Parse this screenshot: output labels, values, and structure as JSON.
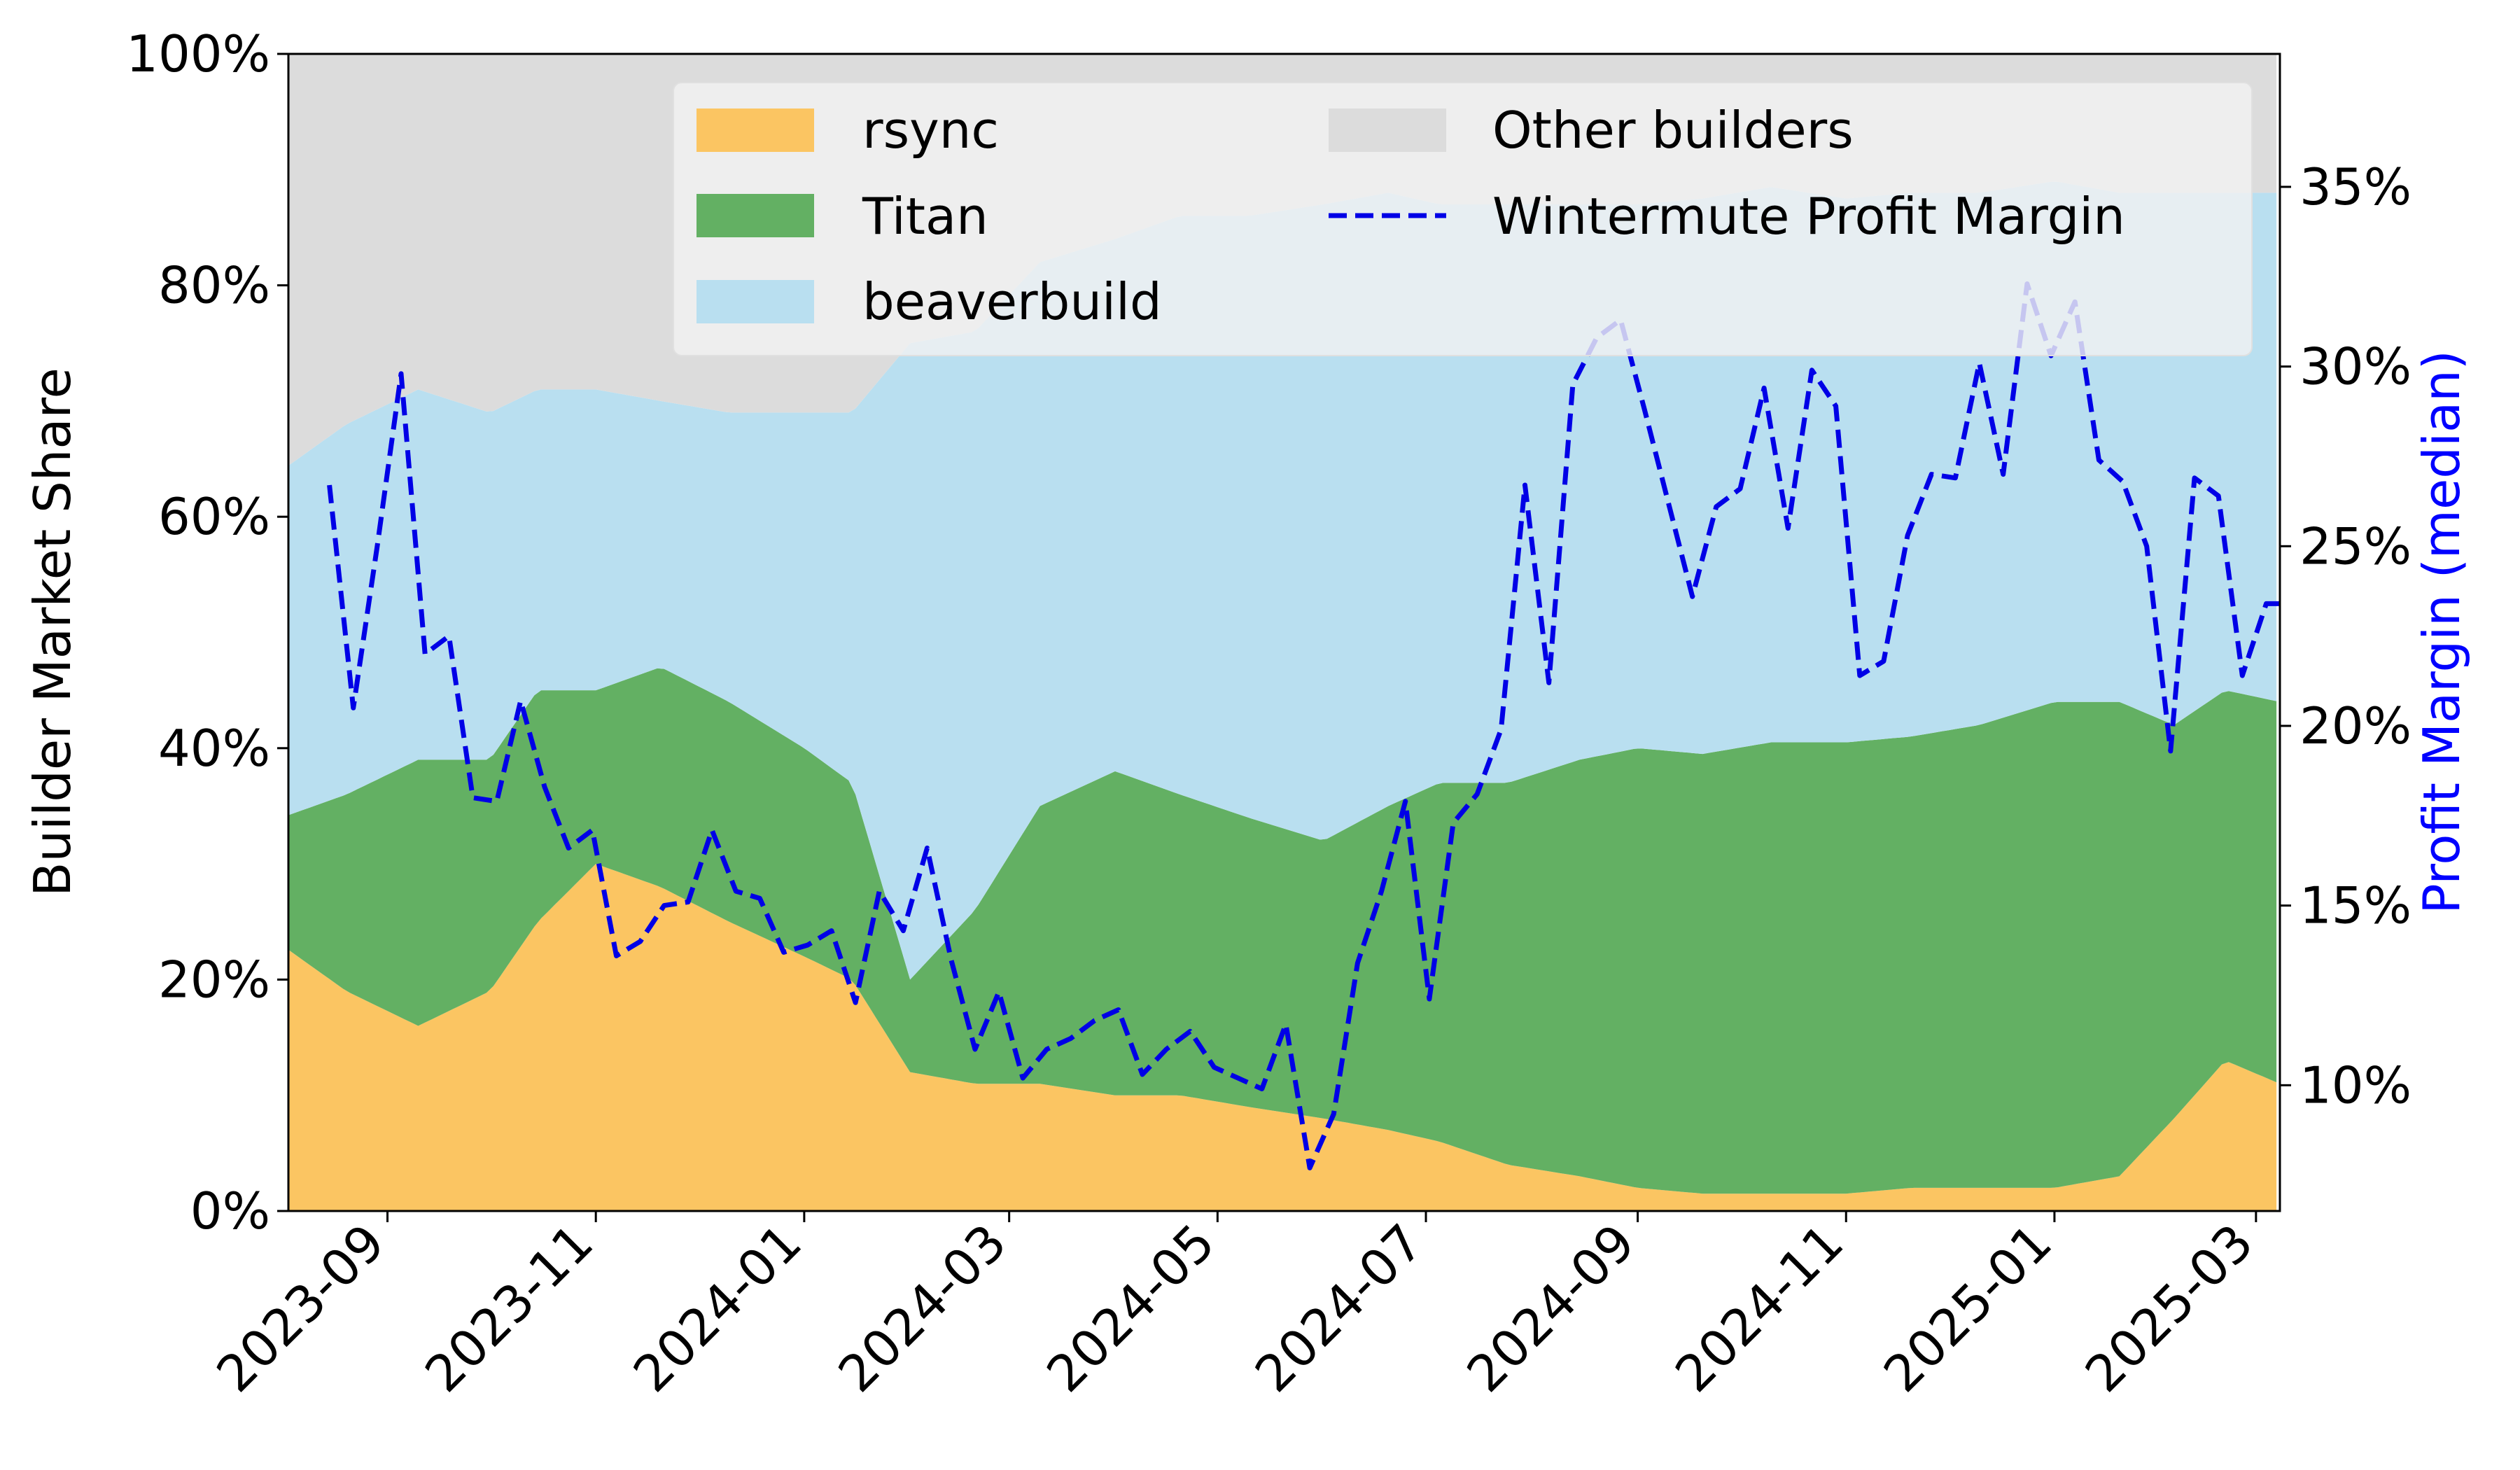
{
  "chart_data": {
    "type": "area",
    "x_axis": {
      "ticks": [
        "2023-09",
        "2023-11",
        "2024-01",
        "2024-03",
        "2024-05",
        "2024-07",
        "2024-09",
        "2024-11",
        "2025-01",
        "2025-03"
      ],
      "range": [
        "2023-08-03",
        "2025-03-08"
      ]
    },
    "y_left": {
      "label": "Builder Market Share",
      "range": [
        0,
        100
      ],
      "ticks": [
        "0%",
        "20%",
        "40%",
        "60%",
        "80%",
        "100%"
      ]
    },
    "y_right": {
      "label": "Profit Margin (median)",
      "range": [
        6.5,
        38.7
      ],
      "ticks": [
        "10%",
        "15%",
        "20%",
        "25%",
        "30%",
        "35%"
      ]
    },
    "grid": false,
    "legend": {
      "position": "top",
      "columns": 2
    },
    "colors": {
      "rsync": "#fbc562",
      "Titan": "#63b063",
      "beaverbuild": "#b9dff0",
      "Other builders": "#dcdcdc",
      "margin": "#0000e6",
      "right_axis_text": "#0000ff"
    },
    "series": [
      {
        "name": "rsync",
        "kind": "stacked-area",
        "x": [
          "2023-08-01",
          "2023-08-20",
          "2023-09-10",
          "2023-10-01",
          "2023-10-15",
          "2023-11-01",
          "2023-11-20",
          "2023-12-10",
          "2024-01-01",
          "2024-01-15",
          "2024-02-01",
          "2024-02-20",
          "2024-03-10",
          "2024-04-01",
          "2024-04-20",
          "2024-05-10",
          "2024-06-01",
          "2024-06-20",
          "2024-07-05",
          "2024-07-25",
          "2024-08-15",
          "2024-09-01",
          "2024-09-20",
          "2024-10-10",
          "2024-11-01",
          "2024-11-20",
          "2024-12-10",
          "2025-01-01",
          "2025-01-20",
          "2025-02-05",
          "2025-02-20",
          "2025-03-08"
        ],
        "values": [
          23,
          19,
          16,
          19,
          25,
          30,
          28,
          25,
          22,
          20,
          12,
          11,
          11,
          10,
          10,
          9,
          8,
          7,
          6,
          4,
          3,
          2,
          1.5,
          1.5,
          1.5,
          2,
          2,
          2,
          3,
          8,
          13,
          11
        ]
      },
      {
        "name": "Titan",
        "kind": "stacked-area",
        "x": [
          "2023-08-01",
          "2023-08-20",
          "2023-09-10",
          "2023-10-01",
          "2023-10-15",
          "2023-11-01",
          "2023-11-20",
          "2023-12-10",
          "2024-01-01",
          "2024-01-15",
          "2024-02-01",
          "2024-02-20",
          "2024-03-10",
          "2024-04-01",
          "2024-04-20",
          "2024-05-10",
          "2024-06-01",
          "2024-06-20",
          "2024-07-05",
          "2024-07-25",
          "2024-08-15",
          "2024-09-01",
          "2024-09-20",
          "2024-10-10",
          "2024-11-01",
          "2024-11-20",
          "2024-12-10",
          "2025-01-01",
          "2025-01-20",
          "2025-02-05",
          "2025-02-20",
          "2025-03-08"
        ],
        "values": [
          11,
          17,
          23,
          20,
          20,
          15,
          19,
          19,
          18,
          17,
          8,
          15,
          24,
          28,
          26,
          25,
          24,
          28,
          31,
          33,
          36,
          38,
          38,
          39,
          39,
          39,
          40,
          42,
          41,
          34,
          32,
          33
        ]
      },
      {
        "name": "beaverbuild",
        "kind": "stacked-area",
        "x": [
          "2023-08-01",
          "2023-08-20",
          "2023-09-10",
          "2023-10-01",
          "2023-10-15",
          "2023-11-01",
          "2023-11-20",
          "2023-12-10",
          "2024-01-01",
          "2024-01-15",
          "2024-02-01",
          "2024-02-20",
          "2024-03-10",
          "2024-04-01",
          "2024-04-20",
          "2024-05-10",
          "2024-06-01",
          "2024-06-20",
          "2024-07-05",
          "2024-07-25",
          "2024-08-15",
          "2024-09-01",
          "2024-09-20",
          "2024-10-10",
          "2024-11-01",
          "2024-11-20",
          "2024-12-10",
          "2025-01-01",
          "2025-01-20",
          "2025-02-05",
          "2025-02-20",
          "2025-03-08"
        ],
        "values": [
          30,
          32,
          32,
          30,
          26,
          26,
          23,
          25,
          29,
          32,
          55,
          50,
          47,
          46,
          50,
          52,
          55,
          53,
          50,
          50,
          48,
          47,
          48,
          48,
          47,
          47,
          46,
          45,
          44,
          46,
          43,
          44
        ]
      },
      {
        "name": "Other builders",
        "kind": "stacked-area",
        "x": [
          "2023-08-01",
          "2023-08-20",
          "2023-09-10",
          "2023-10-01",
          "2023-10-15",
          "2023-11-01",
          "2023-11-20",
          "2023-12-10",
          "2024-01-01",
          "2024-01-15",
          "2024-02-01",
          "2024-02-20",
          "2024-03-10",
          "2024-04-01",
          "2024-04-20",
          "2024-05-10",
          "2024-06-01",
          "2024-06-20",
          "2024-07-05",
          "2024-07-25",
          "2024-08-15",
          "2024-09-01",
          "2024-09-20",
          "2024-10-10",
          "2024-11-01",
          "2024-11-20",
          "2024-12-10",
          "2025-01-01",
          "2025-01-20",
          "2025-02-05",
          "2025-02-20",
          "2025-03-08"
        ],
        "values": [
          36,
          32,
          29,
          31,
          29,
          29,
          30,
          31,
          31,
          31,
          25,
          24,
          18,
          16,
          14,
          14,
          13,
          12,
          13,
          13,
          13,
          13,
          12.5,
          11.5,
          12.5,
          12,
          12,
          11,
          12,
          12,
          12,
          12
        ]
      },
      {
        "name": "Wintermute Profit Margin",
        "kind": "line",
        "axis": "right",
        "style": "dashed",
        "x": [
          "2023-08-15",
          "2023-08-22",
          "2023-08-29",
          "2023-09-05",
          "2023-09-12",
          "2023-09-19",
          "2023-09-26",
          "2023-10-03",
          "2023-10-10",
          "2023-10-17",
          "2023-10-24",
          "2023-10-31",
          "2023-11-07",
          "2023-11-14",
          "2023-11-21",
          "2023-11-28",
          "2023-12-05",
          "2023-12-12",
          "2023-12-19",
          "2023-12-26",
          "2024-01-02",
          "2024-01-09",
          "2024-01-16",
          "2024-01-23",
          "2024-01-30",
          "2024-02-06",
          "2024-02-13",
          "2024-02-20",
          "2024-02-27",
          "2024-03-05",
          "2024-03-12",
          "2024-03-19",
          "2024-03-26",
          "2024-04-02",
          "2024-04-09",
          "2024-04-16",
          "2024-04-23",
          "2024-04-30",
          "2024-05-07",
          "2024-05-14",
          "2024-05-21",
          "2024-05-28",
          "2024-06-04",
          "2024-06-11",
          "2024-06-18",
          "2024-06-25",
          "2024-07-02",
          "2024-07-09",
          "2024-07-16",
          "2024-07-23",
          "2024-07-30",
          "2024-08-06",
          "2024-08-13",
          "2024-08-20",
          "2024-08-27",
          "2024-09-03",
          "2024-09-10",
          "2024-09-17",
          "2024-09-24",
          "2024-10-01",
          "2024-10-08",
          "2024-10-15",
          "2024-10-22",
          "2024-10-29",
          "2024-11-05",
          "2024-11-12",
          "2024-11-19",
          "2024-11-26",
          "2024-12-03",
          "2024-12-10",
          "2024-12-17",
          "2024-12-24",
          "2024-12-31",
          "2025-01-07",
          "2025-01-14",
          "2025-01-21",
          "2025-01-28",
          "2025-02-04",
          "2025-02-11",
          "2025-02-18",
          "2025-02-25",
          "2025-03-04",
          "2025-03-08"
        ],
        "values": [
          26.7,
          20.5,
          25.0,
          29.8,
          22.0,
          22.5,
          18.0,
          17.9,
          20.7,
          18.3,
          16.6,
          17.1,
          13.6,
          14.0,
          15.0,
          15.1,
          17.1,
          15.4,
          15.2,
          13.7,
          13.9,
          14.3,
          12.3,
          15.4,
          14.3,
          16.6,
          13.5,
          11.0,
          12.6,
          10.2,
          11.0,
          11.3,
          11.8,
          12.1,
          10.3,
          11.0,
          11.5,
          10.5,
          10.2,
          9.9,
          11.7,
          7.7,
          9.2,
          13.4,
          15.4,
          17.9,
          12.4,
          17.3,
          18.1,
          19.9,
          26.7,
          21.2,
          29.5,
          30.8,
          31.3,
          28.8,
          26.2,
          23.6,
          26.1,
          26.6,
          29.4,
          25.5,
          29.9,
          28.9,
          21.4,
          21.8,
          25.3,
          27.0,
          26.9,
          30.1,
          27.0,
          32.3,
          30.3,
          31.8,
          27.4,
          26.8,
          25.0,
          19.3,
          26.9,
          26.4,
          21.4,
          23.4,
          23.4
        ]
      }
    ]
  }
}
